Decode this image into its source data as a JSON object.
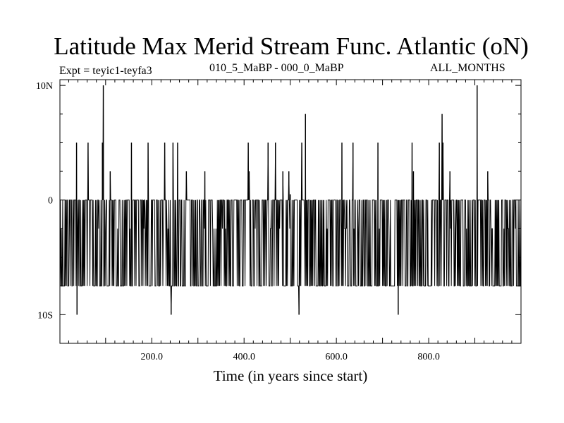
{
  "chart_data": {
    "type": "line",
    "title": "Latitude Max Merid Stream Func. Atlantic (oN)",
    "subtitle_left": "Expt = teyic1-teyfa3",
    "subtitle_center": "010_5_MaBP - 000_0_MaBP",
    "subtitle_right": "ALL_MONTHS",
    "xlabel": "Time (in years since start)",
    "ylabel": "",
    "xlim": [
      1,
      1000
    ],
    "ylim": [
      -12.5,
      10.5
    ],
    "x_ticks": [
      {
        "value": 200,
        "label": "200.0"
      },
      {
        "value": 400,
        "label": "400.0"
      },
      {
        "value": 600,
        "label": "600.0"
      },
      {
        "value": 800,
        "label": "800.0"
      }
    ],
    "y_ticks": [
      {
        "value": 10,
        "label": "10N"
      },
      {
        "value": 0,
        "label": "0"
      },
      {
        "value": -10,
        "label": "10S"
      }
    ],
    "grid": false,
    "series": [
      {
        "name": "latitude_of_max",
        "baseline_high": 0,
        "baseline_low": -7.5,
        "spikes": [
          {
            "x": 37,
            "y": 5
          },
          {
            "x": 38,
            "y": -10
          },
          {
            "x": 62,
            "y": 5
          },
          {
            "x": 93,
            "y": 5
          },
          {
            "x": 95,
            "y": 10
          },
          {
            "x": 110,
            "y": 2.5
          },
          {
            "x": 156,
            "y": 5
          },
          {
            "x": 192,
            "y": 5
          },
          {
            "x": 228,
            "y": 5
          },
          {
            "x": 242,
            "y": -10
          },
          {
            "x": 246,
            "y": 5
          },
          {
            "x": 256,
            "y": 5
          },
          {
            "x": 275,
            "y": 2.5
          },
          {
            "x": 315,
            "y": 2.5
          },
          {
            "x": 409,
            "y": 5
          },
          {
            "x": 411,
            "y": 2.5
          },
          {
            "x": 452,
            "y": 5
          },
          {
            "x": 468,
            "y": 5
          },
          {
            "x": 484,
            "y": 2.5
          },
          {
            "x": 497,
            "y": 2.5
          },
          {
            "x": 500,
            "y": 0.5
          },
          {
            "x": 519,
            "y": -10
          },
          {
            "x": 525,
            "y": 5
          },
          {
            "x": 533,
            "y": 7.5
          },
          {
            "x": 612,
            "y": 5
          },
          {
            "x": 636,
            "y": 5
          },
          {
            "x": 690,
            "y": 5
          },
          {
            "x": 734,
            "y": -10
          },
          {
            "x": 764,
            "y": 5
          },
          {
            "x": 767,
            "y": 2.5
          },
          {
            "x": 823,
            "y": 5
          },
          {
            "x": 829,
            "y": 7.5
          },
          {
            "x": 831,
            "y": 5
          },
          {
            "x": 846,
            "y": 2.5
          },
          {
            "x": 905,
            "y": 10
          },
          {
            "x": 928,
            "y": 2.5
          }
        ]
      }
    ]
  }
}
